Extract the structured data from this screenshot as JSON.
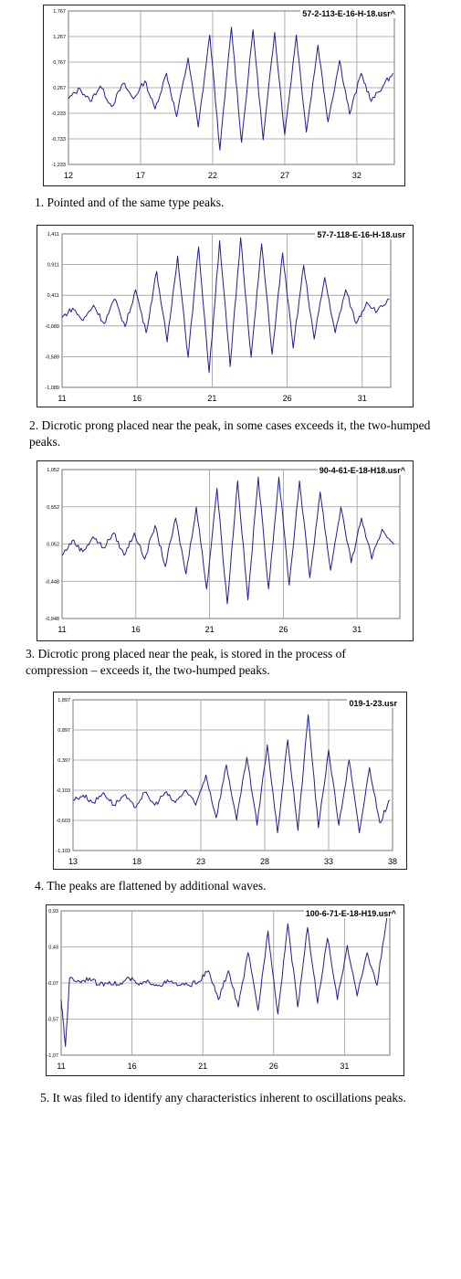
{
  "chart_data": [
    {
      "type": "line",
      "title": "57-2-113-E-16-H-18.usr^",
      "y_ticks": [
        "1,767",
        "1,267",
        "0,767",
        "0,267",
        "-0,233",
        "-0,733",
        "-1,233"
      ],
      "ylim": [
        -1.233,
        1.767
      ],
      "x_ticks": [
        12,
        17,
        22,
        27,
        32
      ],
      "xlim": [
        12,
        34.6
      ],
      "grid": true,
      "line_color": "#1f1f8f",
      "series": [
        {
          "x": [
            12.0,
            12.8,
            13.5,
            14.2,
            15.0,
            15.8,
            16.5,
            17.3,
            18.0,
            18.8,
            19.5,
            20.3,
            21.0,
            21.8,
            22.5,
            23.3,
            24.0,
            24.8,
            25.5,
            26.3,
            27.0,
            27.8,
            28.5,
            29.3,
            30.0,
            30.8,
            31.5,
            32.3,
            33.0,
            33.8,
            34.5
          ],
          "y": [
            0.05,
            0.25,
            0.0,
            0.3,
            -0.1,
            0.35,
            0.05,
            0.4,
            -0.15,
            0.55,
            -0.3,
            0.85,
            -0.5,
            1.3,
            -0.95,
            1.45,
            -0.8,
            1.4,
            -0.75,
            1.35,
            -0.65,
            1.3,
            -0.6,
            1.1,
            -0.4,
            0.8,
            -0.25,
            0.55,
            0.0,
            0.3,
            0.55
          ]
        }
      ]
    },
    {
      "type": "line",
      "title": "57-7-118-E-16-H-18.usr",
      "y_ticks": [
        "1,411",
        "0,911",
        "0,411",
        "-0,089",
        "-0,589",
        "-1,089"
      ],
      "ylim": [
        -1.089,
        1.411
      ],
      "x_ticks": [
        11,
        16,
        21,
        26,
        31
      ],
      "xlim": [
        11,
        32.9
      ],
      "grid": true,
      "line_color": "#1f1f8f",
      "series": [
        {
          "x": [
            11.0,
            11.7,
            12.4,
            13.1,
            13.8,
            14.5,
            15.2,
            15.9,
            16.6,
            17.3,
            18.0,
            18.7,
            19.4,
            20.1,
            20.8,
            21.5,
            22.2,
            22.9,
            23.6,
            24.3,
            25.0,
            25.7,
            26.4,
            27.1,
            27.8,
            28.5,
            29.2,
            29.9,
            30.6,
            31.3,
            32.0,
            32.8
          ],
          "y": [
            0.05,
            0.2,
            0.0,
            0.25,
            -0.05,
            0.35,
            -0.1,
            0.5,
            -0.2,
            0.8,
            -0.35,
            1.05,
            -0.6,
            1.2,
            -0.85,
            1.3,
            -0.75,
            1.35,
            -0.6,
            1.25,
            -0.55,
            1.1,
            -0.45,
            0.9,
            -0.3,
            0.7,
            -0.2,
            0.5,
            -0.05,
            0.3,
            0.15,
            0.35
          ]
        }
      ]
    },
    {
      "type": "line",
      "title": "90-4-61-E-18-H18.usr^",
      "y_ticks": [
        "1,052",
        "0,552",
        "0,052",
        "-0,448",
        "-0,948"
      ],
      "ylim": [
        -0.948,
        1.052
      ],
      "x_ticks": [
        11,
        16,
        21,
        26,
        31
      ],
      "xlim": [
        11,
        33.9
      ],
      "grid": true,
      "line_color": "#1f1f8f",
      "series": [
        {
          "x": [
            11.0,
            11.7,
            12.4,
            13.1,
            13.8,
            14.5,
            15.2,
            15.9,
            16.6,
            17.3,
            18.0,
            18.7,
            19.4,
            20.1,
            20.8,
            21.5,
            22.2,
            22.9,
            23.6,
            24.3,
            25.0,
            25.7,
            26.4,
            27.1,
            27.8,
            28.5,
            29.2,
            29.9,
            30.6,
            31.3,
            32.0,
            32.7,
            33.5
          ],
          "y": [
            -0.1,
            0.1,
            -0.05,
            0.15,
            0.0,
            0.2,
            -0.1,
            0.2,
            -0.15,
            0.3,
            -0.25,
            0.4,
            -0.35,
            0.55,
            -0.55,
            0.8,
            -0.75,
            0.9,
            -0.7,
            0.95,
            -0.55,
            0.95,
            -0.5,
            0.9,
            -0.4,
            0.75,
            -0.3,
            0.55,
            -0.2,
            0.4,
            -0.15,
            0.25,
            0.05
          ]
        }
      ]
    },
    {
      "type": "line",
      "title": "019-1-23.usr",
      "y_ticks": [
        "1,897",
        "0,897",
        "0,397",
        "-0,103",
        "-0,603",
        "-1,103"
      ],
      "ylim": [
        -1.103,
        1.897
      ],
      "x_ticks": [
        13,
        18,
        23,
        28,
        33,
        38
      ],
      "xlim": [
        13,
        38
      ],
      "grid": true,
      "line_color": "#1f1f8f",
      "series": [
        {
          "x": [
            13.0,
            13.8,
            14.6,
            15.4,
            16.2,
            17.0,
            17.8,
            18.6,
            19.4,
            20.2,
            21.0,
            21.8,
            22.6,
            23.4,
            24.2,
            25.0,
            25.8,
            26.6,
            27.4,
            28.2,
            29.0,
            29.8,
            30.6,
            31.4,
            32.2,
            33.0,
            33.8,
            34.6,
            35.4,
            36.2,
            37.0,
            37.8
          ],
          "y": [
            -0.1,
            0.0,
            -0.15,
            0.05,
            -0.2,
            0.0,
            -0.25,
            0.05,
            -0.2,
            0.05,
            -0.15,
            0.1,
            -0.2,
            0.4,
            -0.45,
            0.6,
            -0.5,
            0.75,
            -0.6,
            1.0,
            -0.75,
            1.1,
            -0.7,
            1.6,
            -0.65,
            0.9,
            -0.6,
            0.7,
            -0.75,
            0.55,
            -0.55,
            -0.1
          ]
        }
      ]
    },
    {
      "type": "line",
      "title": "100-6-71-E-18-H19.usr^",
      "y_ticks": [
        "0,93",
        "0,43",
        "-0,07",
        "-0,57",
        "-1,07"
      ],
      "ylim": [
        -1.07,
        0.93
      ],
      "x_ticks": [
        11,
        16,
        21,
        26,
        31
      ],
      "xlim": [
        11,
        34.2
      ],
      "grid": true,
      "line_color": "#1f1f8f",
      "series": [
        {
          "x": [
            11.0,
            11.3,
            11.6,
            12.3,
            13.0,
            13.7,
            14.4,
            15.1,
            15.8,
            16.5,
            17.2,
            17.9,
            18.6,
            19.3,
            20.0,
            20.7,
            21.4,
            22.1,
            22.8,
            23.5,
            24.2,
            24.9,
            25.6,
            26.3,
            27.0,
            27.7,
            28.4,
            29.1,
            29.8,
            30.5,
            31.2,
            31.9,
            32.6,
            33.3,
            34.0
          ],
          "y": [
            -0.3,
            -0.95,
            0.0,
            -0.05,
            0.0,
            -0.1,
            -0.05,
            -0.1,
            0.0,
            -0.1,
            -0.05,
            -0.1,
            -0.05,
            -0.1,
            -0.1,
            -0.05,
            0.1,
            -0.3,
            0.1,
            -0.4,
            0.35,
            -0.45,
            0.65,
            -0.5,
            0.75,
            -0.4,
            0.7,
            -0.35,
            0.55,
            -0.3,
            0.45,
            -0.25,
            0.35,
            -0.1,
            0.85
          ]
        }
      ]
    }
  ],
  "captions": [
    "1. Pointed and of the same type peaks.",
    "2. Dicrotic prong placed near the peak, in some cases exceeds it, the two-humped peaks.",
    "3. Dicrotic prong placed near the peak, is stored in the process of compression – exceeds it, the two-humped peaks.",
    "4. The peaks are flattened by additional waves.",
    "5. It was filed to identify any characteristics inherent to oscillations peaks."
  ]
}
